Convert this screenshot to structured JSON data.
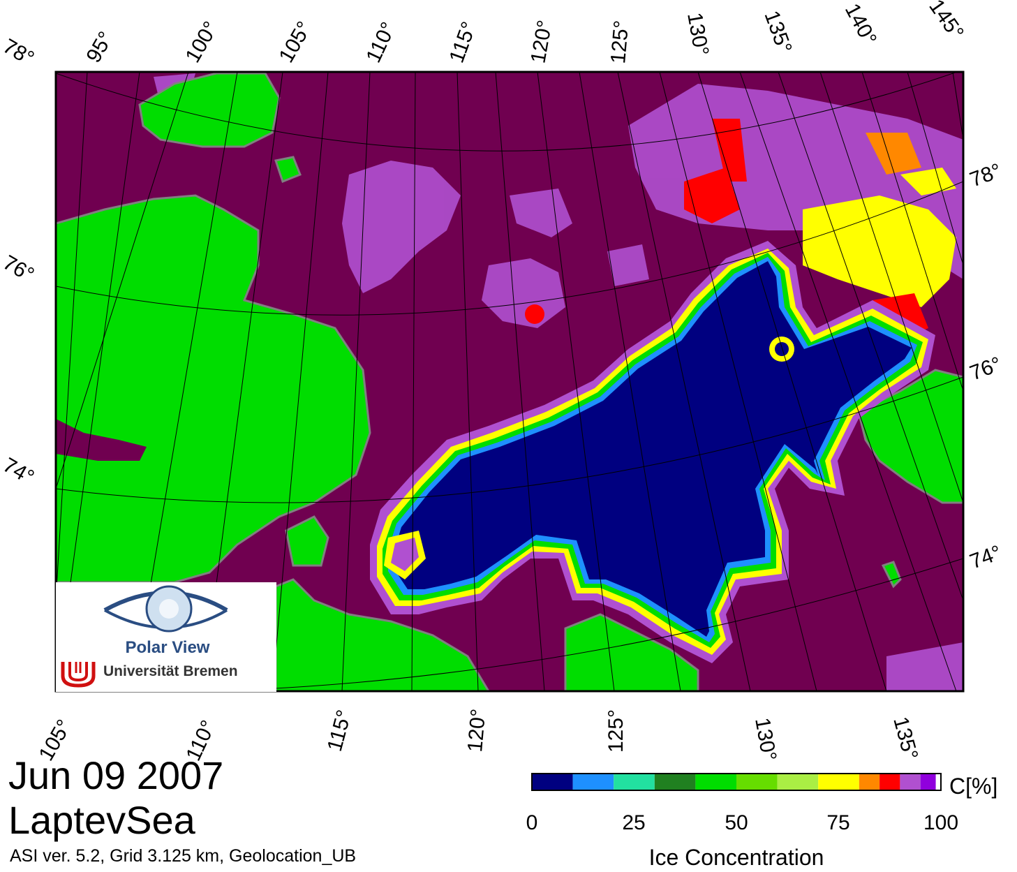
{
  "title": {
    "date": "Jun 09 2007",
    "region": "LaptevSea",
    "subtitle": "ASI ver. 5.2,  Grid 3.125 km, Geolocation_UB"
  },
  "logo": {
    "name": "Polar View",
    "institution": "Universität Bremen"
  },
  "map": {
    "top_lon_labels": [
      "95°",
      "100°",
      "105°",
      "110°",
      "115°",
      "120°",
      "125°",
      "130°",
      "135°",
      "140°",
      "145°"
    ],
    "left_lat_labels": [
      "78°",
      "76°",
      "74°"
    ],
    "right_lat_labels": [
      "78°",
      "76°",
      "74°"
    ],
    "bottom_lon_labels": [
      "105°",
      "110°",
      "115°",
      "120°",
      "125°",
      "130°",
      "135°"
    ],
    "colors": {
      "land": "#00dd00",
      "open_water": "#700050",
      "ice_core": "#000080",
      "coast": "#808080"
    }
  },
  "legend": {
    "title": "Ice Concentration",
    "unit": "C[%]",
    "ticks": [
      "0",
      "25",
      "50",
      "75",
      "100"
    ],
    "colors": [
      "#000080",
      "#1e90ff",
      "#22e0a0",
      "#208020",
      "#00dd00",
      "#66dd00",
      "#aaee44",
      "#ffff00",
      "#ff8800",
      "#ff0000",
      "#b050d0",
      "#9000dd",
      "#ffffff"
    ]
  }
}
